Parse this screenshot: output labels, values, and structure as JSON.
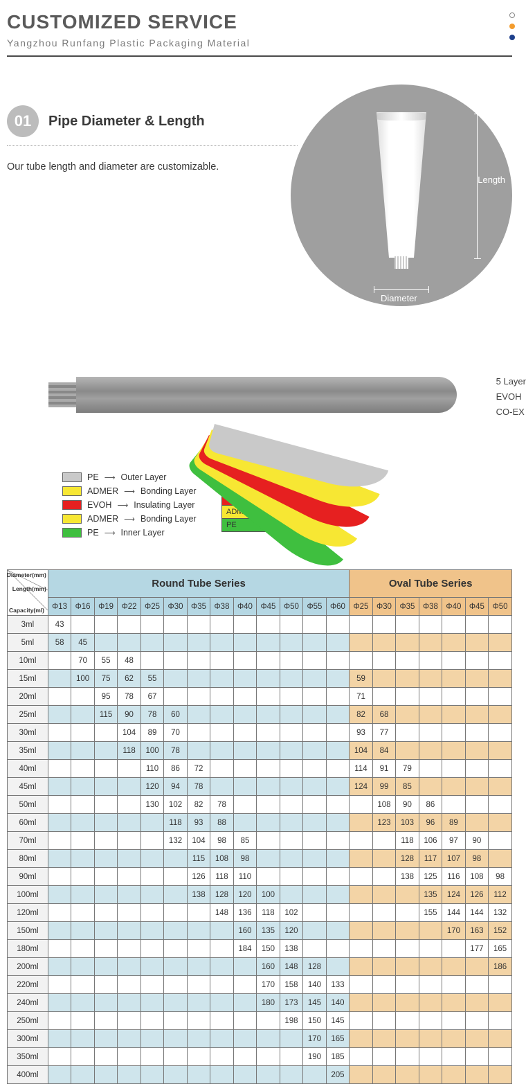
{
  "header": {
    "title": "CUSTOMIZED SERVICE",
    "subtitle": "Yangzhou Runfang Plastic Packaging Material",
    "dots": [
      "#ffffff",
      "#f39c2d",
      "#1d3f8b"
    ],
    "dot_border": "#888"
  },
  "section01": {
    "badge": "01",
    "title": "Pipe Diameter & Length",
    "description": "Our tube length and diameter are customizable.",
    "length_label": "Length",
    "diameter_label": "Diameter"
  },
  "side_labels": [
    "5 Layer",
    "EVOH",
    "CO-EX"
  ],
  "layers": [
    {
      "name": "PE",
      "role": "Outer Layer",
      "color": "#c9c9c9"
    },
    {
      "name": "ADMER",
      "role": "Bonding Layer",
      "color": "#f7e733"
    },
    {
      "name": "EVOH",
      "role": "Insulating Layer",
      "color": "#e62020"
    },
    {
      "name": "ADMER",
      "role": "Bonding Layer",
      "color": "#f7e733"
    },
    {
      "name": "PE",
      "role": "Inner Layer",
      "color": "#3fbf3f"
    }
  ],
  "table": {
    "corner_labels": [
      "Diameter(mm)",
      "Length(mm)",
      "Capacity(ml)"
    ],
    "round_header": "Round Tube Series",
    "oval_header": "Oval Tube Series",
    "round_diameters": [
      "Φ13",
      "Φ16",
      "Φ19",
      "Φ22",
      "Φ25",
      "Φ30",
      "Φ35",
      "Φ38",
      "Φ40",
      "Φ45",
      "Φ50",
      "Φ55",
      "Φ60"
    ],
    "oval_diameters": [
      "Φ25",
      "Φ30",
      "Φ35",
      "Φ38",
      "Φ40",
      "Φ45",
      "Φ50"
    ],
    "colors": {
      "round_header_bg": "#b5d7e3",
      "oval_header_bg": "#f0c38a",
      "round_alt_bg": "#cfe5ec",
      "oval_alt_bg": "#f3d4a6",
      "capacity_bg": "#f2f2f2",
      "border": "#777"
    },
    "rows": [
      {
        "cap": "3ml",
        "r": [
          "43",
          "",
          "",
          "",
          "",
          "",
          "",
          "",
          "",
          "",
          "",
          "",
          ""
        ],
        "o": [
          "",
          "",
          "",
          "",
          "",
          "",
          ""
        ]
      },
      {
        "cap": "5ml",
        "r": [
          "58",
          "45",
          "",
          "",
          "",
          "",
          "",
          "",
          "",
          "",
          "",
          "",
          ""
        ],
        "o": [
          "",
          "",
          "",
          "",
          "",
          "",
          ""
        ]
      },
      {
        "cap": "10ml",
        "r": [
          "",
          "70",
          "55",
          "48",
          "",
          "",
          "",
          "",
          "",
          "",
          "",
          "",
          ""
        ],
        "o": [
          "",
          "",
          "",
          "",
          "",
          "",
          ""
        ]
      },
      {
        "cap": "15ml",
        "r": [
          "",
          "100",
          "75",
          "62",
          "55",
          "",
          "",
          "",
          "",
          "",
          "",
          "",
          ""
        ],
        "o": [
          "59",
          "",
          "",
          "",
          "",
          "",
          ""
        ]
      },
      {
        "cap": "20ml",
        "r": [
          "",
          "",
          "95",
          "78",
          "67",
          "",
          "",
          "",
          "",
          "",
          "",
          "",
          ""
        ],
        "o": [
          "71",
          "",
          "",
          "",
          "",
          "",
          ""
        ]
      },
      {
        "cap": "25ml",
        "r": [
          "",
          "",
          "115",
          "90",
          "78",
          "60",
          "",
          "",
          "",
          "",
          "",
          "",
          ""
        ],
        "o": [
          "82",
          "68",
          "",
          "",
          "",
          "",
          ""
        ]
      },
      {
        "cap": "30ml",
        "r": [
          "",
          "",
          "",
          "104",
          "89",
          "70",
          "",
          "",
          "",
          "",
          "",
          "",
          ""
        ],
        "o": [
          "93",
          "77",
          "",
          "",
          "",
          "",
          ""
        ]
      },
      {
        "cap": "35ml",
        "r": [
          "",
          "",
          "",
          "118",
          "100",
          "78",
          "",
          "",
          "",
          "",
          "",
          "",
          ""
        ],
        "o": [
          "104",
          "84",
          "",
          "",
          "",
          "",
          ""
        ]
      },
      {
        "cap": "40ml",
        "r": [
          "",
          "",
          "",
          "",
          "110",
          "86",
          "72",
          "",
          "",
          "",
          "",
          "",
          ""
        ],
        "o": [
          "114",
          "91",
          "79",
          "",
          "",
          "",
          ""
        ]
      },
      {
        "cap": "45ml",
        "r": [
          "",
          "",
          "",
          "",
          "120",
          "94",
          "78",
          "",
          "",
          "",
          "",
          "",
          ""
        ],
        "o": [
          "124",
          "99",
          "85",
          "",
          "",
          "",
          ""
        ]
      },
      {
        "cap": "50ml",
        "r": [
          "",
          "",
          "",
          "",
          "130",
          "102",
          "82",
          "78",
          "",
          "",
          "",
          "",
          ""
        ],
        "o": [
          "",
          "108",
          "90",
          "86",
          "",
          "",
          ""
        ]
      },
      {
        "cap": "60ml",
        "r": [
          "",
          "",
          "",
          "",
          "",
          "118",
          "93",
          "88",
          "",
          "",
          "",
          "",
          ""
        ],
        "o": [
          "",
          "123",
          "103",
          "96",
          "89",
          "",
          ""
        ]
      },
      {
        "cap": "70ml",
        "r": [
          "",
          "",
          "",
          "",
          "",
          "132",
          "104",
          "98",
          "85",
          "",
          "",
          "",
          ""
        ],
        "o": [
          "",
          "",
          "118",
          "106",
          "97",
          "90",
          ""
        ]
      },
      {
        "cap": "80ml",
        "r": [
          "",
          "",
          "",
          "",
          "",
          "",
          "115",
          "108",
          "98",
          "",
          "",
          "",
          ""
        ],
        "o": [
          "",
          "",
          "128",
          "117",
          "107",
          "98",
          ""
        ]
      },
      {
        "cap": "90ml",
        "r": [
          "",
          "",
          "",
          "",
          "",
          "",
          "126",
          "118",
          "110",
          "",
          "",
          "",
          ""
        ],
        "o": [
          "",
          "",
          "138",
          "125",
          "116",
          "108",
          "98"
        ]
      },
      {
        "cap": "100ml",
        "r": [
          "",
          "",
          "",
          "",
          "",
          "",
          "138",
          "128",
          "120",
          "100",
          "",
          "",
          ""
        ],
        "o": [
          "",
          "",
          "",
          "135",
          "124",
          "126",
          "112"
        ]
      },
      {
        "cap": "120ml",
        "r": [
          "",
          "",
          "",
          "",
          "",
          "",
          "",
          "148",
          "136",
          "118",
          "102",
          "",
          ""
        ],
        "o": [
          "",
          "",
          "",
          "155",
          "144",
          "144",
          "132"
        ]
      },
      {
        "cap": "150ml",
        "r": [
          "",
          "",
          "",
          "",
          "",
          "",
          "",
          "",
          "160",
          "135",
          "120",
          "",
          ""
        ],
        "o": [
          "",
          "",
          "",
          "",
          "170",
          "163",
          "152"
        ]
      },
      {
        "cap": "180ml",
        "r": [
          "",
          "",
          "",
          "",
          "",
          "",
          "",
          "",
          "184",
          "150",
          "138",
          "",
          ""
        ],
        "o": [
          "",
          "",
          "",
          "",
          "",
          "177",
          "165"
        ]
      },
      {
        "cap": "200ml",
        "r": [
          "",
          "",
          "",
          "",
          "",
          "",
          "",
          "",
          "",
          "160",
          "148",
          "128",
          ""
        ],
        "o": [
          "",
          "",
          "",
          "",
          "",
          "",
          "186"
        ]
      },
      {
        "cap": "220ml",
        "r": [
          "",
          "",
          "",
          "",
          "",
          "",
          "",
          "",
          "",
          "170",
          "158",
          "140",
          "133"
        ],
        "o": [
          "",
          "",
          "",
          "",
          "",
          "",
          ""
        ]
      },
      {
        "cap": "240ml",
        "r": [
          "",
          "",
          "",
          "",
          "",
          "",
          "",
          "",
          "",
          "180",
          "173",
          "145",
          "140"
        ],
        "o": [
          "",
          "",
          "",
          "",
          "",
          "",
          ""
        ]
      },
      {
        "cap": "250ml",
        "r": [
          "",
          "",
          "",
          "",
          "",
          "",
          "",
          "",
          "",
          "",
          "198",
          "150",
          "145"
        ],
        "o": [
          "",
          "",
          "",
          "",
          "",
          "",
          ""
        ]
      },
      {
        "cap": "300ml",
        "r": [
          "",
          "",
          "",
          "",
          "",
          "",
          "",
          "",
          "",
          "",
          "",
          "170",
          "165"
        ],
        "o": [
          "",
          "",
          "",
          "",
          "",
          "",
          ""
        ]
      },
      {
        "cap": "350ml",
        "r": [
          "",
          "",
          "",
          "",
          "",
          "",
          "",
          "",
          "",
          "",
          "",
          "190",
          "185"
        ],
        "o": [
          "",
          "",
          "",
          "",
          "",
          "",
          ""
        ]
      },
      {
        "cap": "400ml",
        "r": [
          "",
          "",
          "",
          "",
          "",
          "",
          "",
          "",
          "",
          "",
          "",
          "",
          "205"
        ],
        "o": [
          "",
          "",
          "",
          "",
          "",
          "",
          ""
        ]
      }
    ]
  }
}
